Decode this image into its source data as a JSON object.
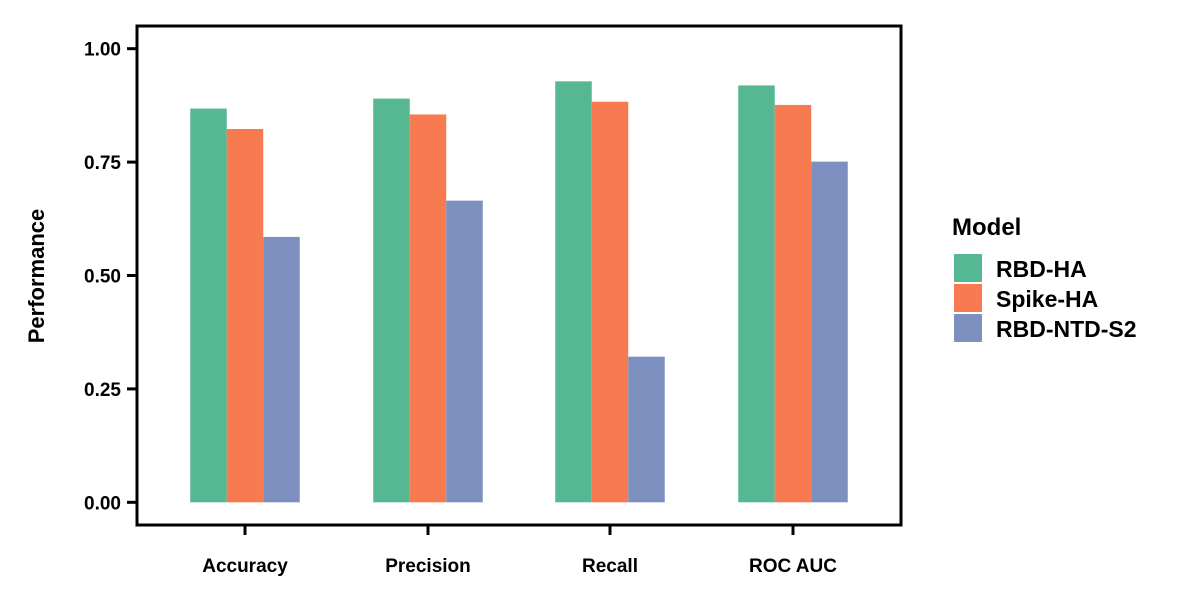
{
  "chart_data": {
    "type": "bar",
    "title": "",
    "xlabel": "",
    "ylabel": "Performance",
    "categories": [
      "Accuracy",
      "Precision",
      "Recall",
      "ROC AUC"
    ],
    "series": [
      {
        "name": "RBD-HA",
        "color": "#55B893",
        "values": [
          0.868,
          0.89,
          0.928,
          0.919
        ]
      },
      {
        "name": "Spike-HA",
        "color": "#F77A51",
        "values": [
          0.823,
          0.855,
          0.883,
          0.876
        ]
      },
      {
        "name": "RBD-NTD-S2",
        "color": "#7C8FBF",
        "values": [
          0.585,
          0.665,
          0.321,
          0.751
        ]
      }
    ],
    "ylim": [
      -0.05,
      1.05
    ],
    "yticks": [
      0.0,
      0.25,
      0.5,
      0.75,
      1.0
    ],
    "ytick_labels": [
      "0.00",
      "0.25",
      "0.50",
      "0.75",
      "1.00"
    ],
    "legend": {
      "title": "Model",
      "placement": "right"
    },
    "grid": false
  }
}
